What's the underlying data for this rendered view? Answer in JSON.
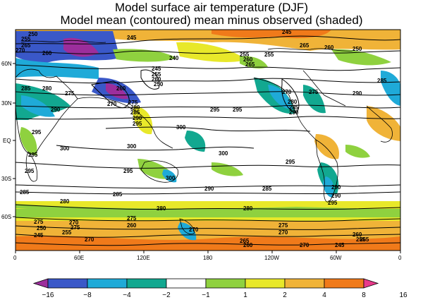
{
  "title": "Model surface air temperature (DJF)",
  "subtitle": "Model mean (contoured)  mean minus observed (shaded)",
  "lat_ticks": [
    "60N",
    "30N",
    "EQ",
    "30S",
    "60S"
  ],
  "lon_ticks": [
    "0",
    "60E",
    "120E",
    "180",
    "120W",
    "60W",
    "0"
  ],
  "colorbar": {
    "labels": [
      "−16",
      "−8",
      "−4",
      "−2",
      "−1",
      "1",
      "2",
      "4",
      "8",
      "16"
    ],
    "colors": [
      "#9c2e9c",
      "#3a58c8",
      "#1faad8",
      "#12a890",
      "#ffffff",
      "#8fd13f",
      "#e8e82a",
      "#f0b338",
      "#f07a1a",
      "#e83a8a"
    ]
  },
  "contour_labels": [
    {
      "text": "250"
    },
    {
      "text": "255"
    },
    {
      "text": "265"
    },
    {
      "text": "270"
    },
    {
      "text": "260"
    },
    {
      "text": "245"
    },
    {
      "text": "240"
    },
    {
      "text": "245"
    },
    {
      "text": "255"
    },
    {
      "text": "260"
    },
    {
      "text": "250"
    },
    {
      "text": "255"
    },
    {
      "text": "260"
    },
    {
      "text": "265"
    },
    {
      "text": "255"
    },
    {
      "text": "245"
    },
    {
      "text": "265"
    },
    {
      "text": "260"
    },
    {
      "text": "250"
    },
    {
      "text": "285"
    },
    {
      "text": "280"
    },
    {
      "text": "275"
    },
    {
      "text": "260"
    },
    {
      "text": "270"
    },
    {
      "text": "275"
    },
    {
      "text": "280"
    },
    {
      "text": "285"
    },
    {
      "text": "290"
    },
    {
      "text": "290"
    },
    {
      "text": "295"
    },
    {
      "text": "295"
    },
    {
      "text": "270"
    },
    {
      "text": "275"
    },
    {
      "text": "280"
    },
    {
      "text": "285"
    },
    {
      "text": "290"
    },
    {
      "text": "290"
    },
    {
      "text": "285"
    },
    {
      "text": "295"
    },
    {
      "text": "295"
    },
    {
      "text": "300"
    },
    {
      "text": "300"
    },
    {
      "text": "300"
    },
    {
      "text": "295"
    },
    {
      "text": "300"
    },
    {
      "text": "295"
    },
    {
      "text": "295"
    },
    {
      "text": "300"
    },
    {
      "text": "295"
    },
    {
      "text": "290"
    },
    {
      "text": "290"
    },
    {
      "text": "285"
    },
    {
      "text": "285"
    },
    {
      "text": "290"
    },
    {
      "text": "295"
    },
    {
      "text": "285"
    },
    {
      "text": "280"
    },
    {
      "text": "280"
    },
    {
      "text": "280"
    },
    {
      "text": "275"
    },
    {
      "text": "275"
    },
    {
      "text": "275"
    },
    {
      "text": "260"
    },
    {
      "text": "270"
    },
    {
      "text": "270"
    },
    {
      "text": "250"
    },
    {
      "text": "245"
    },
    {
      "text": "255"
    },
    {
      "text": "275"
    },
    {
      "text": "270"
    },
    {
      "text": "265"
    },
    {
      "text": "260"
    },
    {
      "text": "270"
    },
    {
      "text": "245"
    },
    {
      "text": "260"
    },
    {
      "text": "255"
    },
    {
      "text": "265"
    },
    {
      "text": "270"
    }
  ]
}
